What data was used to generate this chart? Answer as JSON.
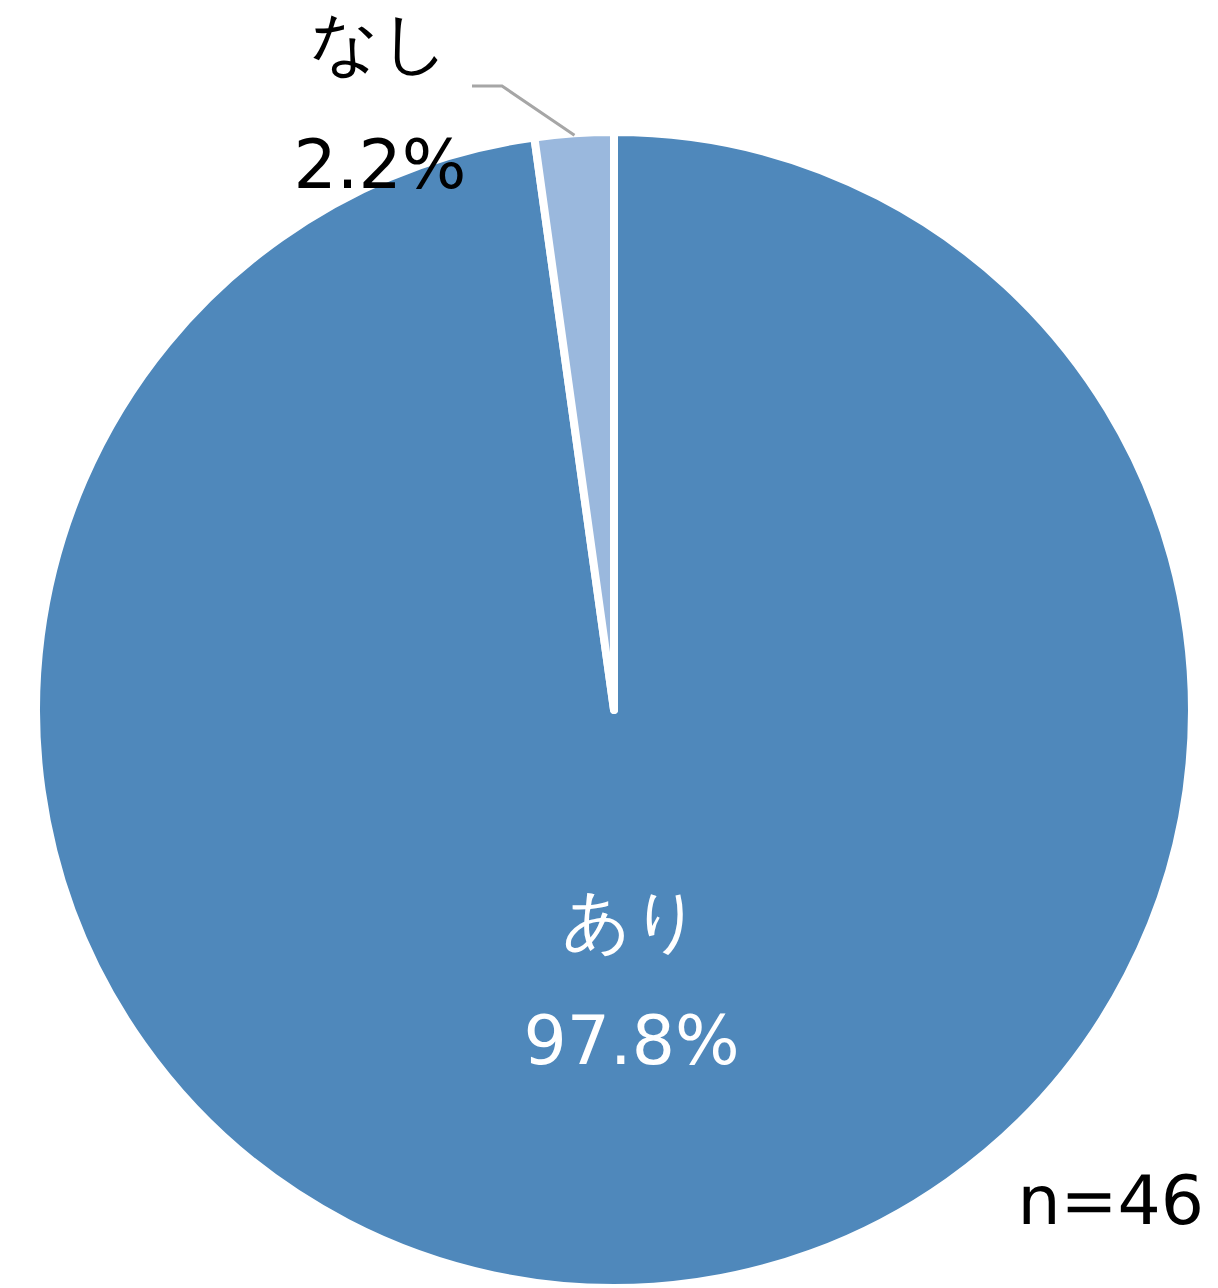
{
  "chart_data": {
    "type": "pie",
    "categories": [
      "あり",
      "なし"
    ],
    "values": [
      97.8,
      2.2
    ],
    "colors": [
      "#4f88bb",
      "#9ab8dd"
    ],
    "value_labels": [
      "97.8%",
      "2.2%"
    ],
    "annotations": [
      "n=46"
    ]
  }
}
